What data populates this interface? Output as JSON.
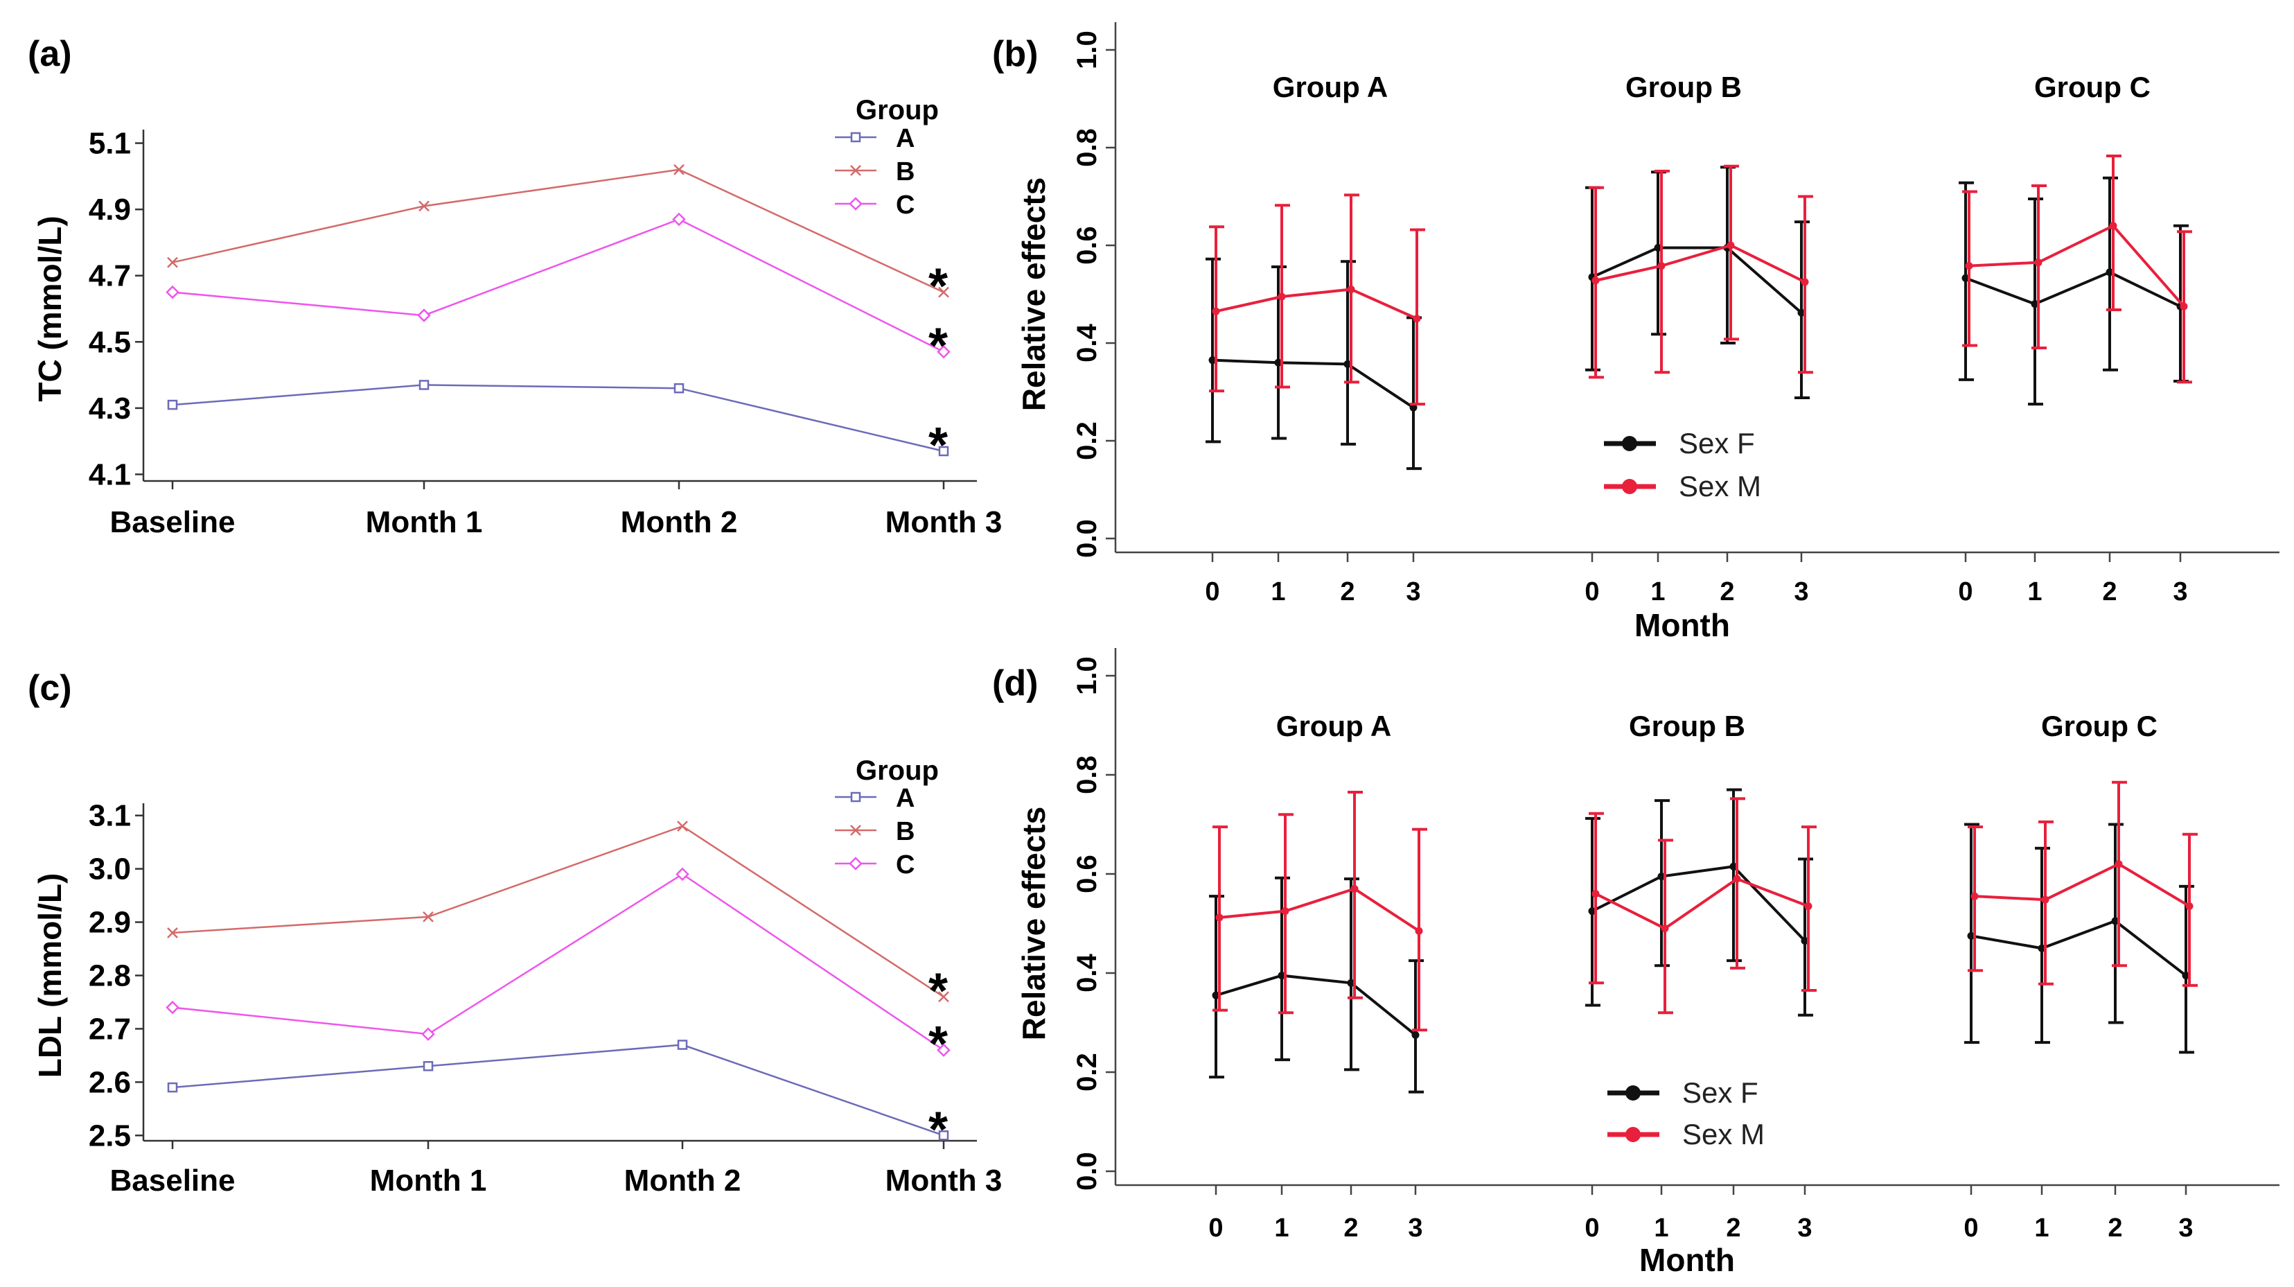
{
  "chart_data": [
    {
      "id": "a",
      "panel_label": "(a)",
      "type": "line",
      "ylabel": "TC (mmol/L)",
      "categories": [
        "Baseline",
        "Month 1",
        "Month 2",
        "Month 3"
      ],
      "yticks": [
        "4.1",
        "4.3",
        "4.5",
        "4.7",
        "4.9",
        "5.1"
      ],
      "ylim": [
        4.08,
        5.12
      ],
      "legend_title": "Group",
      "series": [
        {
          "name": "A",
          "color": "#6b6bb8",
          "marker": "square",
          "values": [
            4.31,
            4.37,
            4.36,
            4.17
          ]
        },
        {
          "name": "B",
          "color": "#d46a6a",
          "marker": "x",
          "values": [
            4.74,
            4.91,
            5.02,
            4.65
          ]
        },
        {
          "name": "C",
          "color": "#ee55ee",
          "marker": "diamond",
          "values": [
            4.65,
            4.58,
            4.87,
            4.47
          ]
        }
      ],
      "annotations": [
        {
          "text": "*",
          "series": "B",
          "category": "Month 3"
        },
        {
          "text": "*",
          "series": "C",
          "category": "Month 3"
        },
        {
          "text": "*",
          "series": "A",
          "category": "Month 3"
        }
      ]
    },
    {
      "id": "b",
      "panel_label": "(b)",
      "type": "line",
      "ylabel": "Relative effects",
      "xlabel": "Month",
      "yticks": [
        "0.0",
        "0.2",
        "0.4",
        "0.6",
        "0.8",
        "1.0"
      ],
      "ylim": [
        0,
        1.0
      ],
      "months": [
        "0",
        "1",
        "2",
        "3"
      ],
      "legend": [
        {
          "name": "Sex F",
          "color": "#111111"
        },
        {
          "name": "Sex M",
          "color": "#e8203c"
        }
      ],
      "groups": [
        {
          "title": "Group A",
          "F": {
            "values": [
              0.365,
              0.36,
              0.357,
              0.268
            ],
            "lower": [
              0.198,
              0.205,
              0.193,
              0.143
            ],
            "upper": [
              0.572,
              0.556,
              0.567,
              0.452
            ]
          },
          "M": {
            "values": [
              0.465,
              0.495,
              0.51,
              0.45
            ],
            "lower": [
              0.302,
              0.31,
              0.32,
              0.275
            ],
            "upper": [
              0.638,
              0.682,
              0.703,
              0.632
            ]
          }
        },
        {
          "title": "Group B",
          "F": {
            "values": [
              0.535,
              0.595,
              0.595,
              0.462
            ],
            "lower": [
              0.345,
              0.418,
              0.4,
              0.288
            ],
            "upper": [
              0.718,
              0.75,
              0.76,
              0.648
            ]
          },
          "M": {
            "values": [
              0.528,
              0.558,
              0.6,
              0.525
            ],
            "lower": [
              0.33,
              0.34,
              0.408,
              0.34
            ],
            "upper": [
              0.718,
              0.752,
              0.762,
              0.7
            ]
          }
        },
        {
          "title": "Group C",
          "F": {
            "values": [
              0.533,
              0.48,
              0.545,
              0.475
            ],
            "lower": [
              0.325,
              0.275,
              0.345,
              0.322
            ],
            "upper": [
              0.728,
              0.695,
              0.738,
              0.64
            ]
          },
          "M": {
            "values": [
              0.558,
              0.565,
              0.64,
              0.475
            ],
            "lower": [
              0.395,
              0.39,
              0.468,
              0.32
            ],
            "upper": [
              0.71,
              0.722,
              0.783,
              0.628
            ]
          }
        }
      ]
    },
    {
      "id": "c",
      "panel_label": "(c)",
      "type": "line",
      "ylabel": "LDL (mmol/L)",
      "categories": [
        "Baseline",
        "Month 1",
        "Month 2",
        "Month 3"
      ],
      "yticks": [
        "2.5",
        "2.6",
        "2.7",
        "2.8",
        "2.9",
        "3.0",
        "3.1"
      ],
      "ylim": [
        2.49,
        3.11
      ],
      "legend_title": "Group",
      "series": [
        {
          "name": "A",
          "color": "#6b6bb8",
          "marker": "square",
          "values": [
            2.59,
            2.63,
            2.67,
            2.5
          ]
        },
        {
          "name": "B",
          "color": "#d46a6a",
          "marker": "x",
          "values": [
            2.88,
            2.91,
            3.08,
            2.76
          ]
        },
        {
          "name": "C",
          "color": "#ee55ee",
          "marker": "diamond",
          "values": [
            2.74,
            2.69,
            2.99,
            2.66
          ]
        }
      ],
      "annotations": [
        {
          "text": "*",
          "series": "B",
          "category": "Month 3"
        },
        {
          "text": "*",
          "series": "C",
          "category": "Month 3"
        },
        {
          "text": "*",
          "series": "A",
          "category": "Month 3"
        }
      ]
    },
    {
      "id": "d",
      "panel_label": "(d)",
      "type": "line",
      "ylabel": "Relative effects",
      "xlabel": "Month",
      "yticks": [
        "0.0",
        "0.2",
        "0.4",
        "0.6",
        "0.8",
        "1.0"
      ],
      "ylim": [
        0,
        1.0
      ],
      "months": [
        "0",
        "1",
        "2",
        "3"
      ],
      "legend": [
        {
          "name": "Sex F",
          "color": "#111111"
        },
        {
          "name": "Sex M",
          "color": "#e8203c"
        }
      ],
      "groups": [
        {
          "title": "Group A",
          "F": {
            "values": [
              0.355,
              0.395,
              0.38,
              0.275
            ],
            "lower": [
              0.19,
              0.225,
              0.205,
              0.16
            ],
            "upper": [
              0.555,
              0.592,
              0.59,
              0.425
            ]
          },
          "M": {
            "values": [
              0.512,
              0.525,
              0.57,
              0.485
            ],
            "lower": [
              0.325,
              0.32,
              0.35,
              0.285
            ],
            "upper": [
              0.695,
              0.72,
              0.765,
              0.69
            ]
          }
        },
        {
          "title": "Group B",
          "F": {
            "values": [
              0.525,
              0.595,
              0.615,
              0.465
            ],
            "lower": [
              0.335,
              0.415,
              0.425,
              0.315
            ],
            "upper": [
              0.712,
              0.748,
              0.77,
              0.63
            ]
          },
          "M": {
            "values": [
              0.56,
              0.49,
              0.59,
              0.535
            ],
            "lower": [
              0.38,
              0.32,
              0.41,
              0.365
            ],
            "upper": [
              0.722,
              0.668,
              0.752,
              0.695
            ]
          }
        },
        {
          "title": "Group C",
          "F": {
            "values": [
              0.475,
              0.45,
              0.505,
              0.395
            ],
            "lower": [
              0.26,
              0.26,
              0.3,
              0.24
            ],
            "upper": [
              0.7,
              0.652,
              0.7,
              0.575
            ]
          },
          "M": {
            "values": [
              0.555,
              0.548,
              0.62,
              0.535
            ],
            "lower": [
              0.405,
              0.378,
              0.415,
              0.375
            ],
            "upper": [
              0.695,
              0.705,
              0.785,
              0.68
            ]
          }
        }
      ]
    }
  ]
}
